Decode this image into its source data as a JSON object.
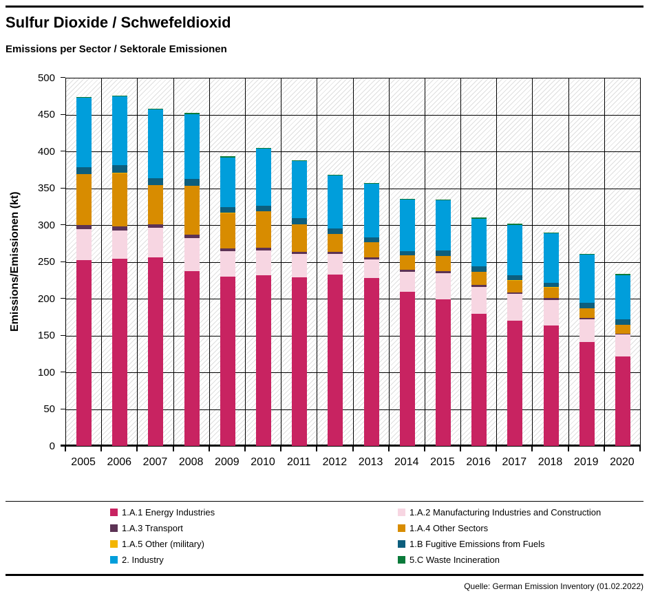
{
  "header": {
    "title": "Sulfur Dioxide / Schwefeldioxid",
    "subtitle": "Emissions per Sector / Sektorale Emissionen"
  },
  "footer": {
    "source": "Quelle: German Emission Inventory (01.02.2022)"
  },
  "chart_data": {
    "type": "bar",
    "stacked": true,
    "title": "Sulfur Dioxide / Schwefeldioxid",
    "subtitle": "Emissions per Sector / Sektorale Emissionen",
    "xlabel": "",
    "ylabel": "Emissions/Emissionen (kt)",
    "ylim": [
      0,
      500
    ],
    "ytick_step": 50,
    "grid": true,
    "legend_position": "bottom",
    "categories": [
      "2005",
      "2006",
      "2007",
      "2008",
      "2009",
      "2010",
      "2011",
      "2012",
      "2013",
      "2014",
      "2015",
      "2016",
      "2017",
      "2018",
      "2019",
      "2020"
    ],
    "series": [
      {
        "name": "1.A.1 Energy Industries",
        "color": "#c82361",
        "values": [
          252.7,
          254.2,
          256.5,
          237.1,
          230.2,
          231.7,
          229.3,
          232.4,
          228.3,
          209.6,
          198.9,
          179.2,
          170.5,
          163.6,
          140.7,
          121.4
        ]
      },
      {
        "name": "1.A.2 Manufacturing Industries and Construction",
        "color": "#f7d6e2",
        "values": [
          41.6,
          38.5,
          39.4,
          44.7,
          34.1,
          33.5,
          31.2,
          28.1,
          25.0,
          26.5,
          36.0,
          36.9,
          35.9,
          35.0,
          31.0,
          29.6
        ]
      },
      {
        "name": "1.A.3 Transport",
        "color": "#5c3355",
        "values": [
          5.3,
          5.3,
          5.2,
          4.7,
          4.0,
          4.0,
          3.1,
          3.1,
          3.2,
          3.1,
          2.2,
          2.2,
          1.9,
          1.9,
          1.8,
          1.6
        ]
      },
      {
        "name": "1.A.4 Other Sectors",
        "color": "#d88c00",
        "values": [
          69.7,
          72.5,
          53.2,
          66.9,
          47.8,
          49.2,
          37.0,
          24.1,
          19.7,
          19.7,
          20.9,
          17.8,
          16.3,
          14.7,
          13.6,
          11.6
        ]
      },
      {
        "name": "1.A.5 Other (military)",
        "color": "#f3b500",
        "values": [
          0.3,
          0.3,
          0.3,
          0.3,
          0.3,
          0.3,
          0.3,
          0.3,
          0.3,
          0.3,
          0.3,
          0.3,
          0.3,
          0.3,
          0.3,
          0.3
        ]
      },
      {
        "name": "1.B Fugitive Emissions from Fuels",
        "color": "#0d5e7d",
        "values": [
          9.4,
          10.4,
          9.4,
          8.7,
          7.9,
          7.8,
          8.4,
          7.2,
          6.8,
          5.4,
          7.2,
          7.2,
          6.8,
          6.2,
          7.1,
          7.2
        ]
      },
      {
        "name": "2. Industry",
        "color": "#009edb",
        "values": [
          94.1,
          93.5,
          92.9,
          88.5,
          67.6,
          76.9,
          78.0,
          72.3,
          72.9,
          69.7,
          68.2,
          65.0,
          68.5,
          67.0,
          65.1,
          60.4
        ]
      },
      {
        "name": "5.C Waste Incineration",
        "color": "#0a7a3a",
        "values": [
          1.0,
          1.0,
          1.2,
          1.3,
          1.2,
          1.2,
          1.0,
          0.9,
          1.2,
          1.3,
          1.2,
          1.3,
          1.3,
          1.2,
          1.2,
          1.2
        ]
      }
    ]
  }
}
